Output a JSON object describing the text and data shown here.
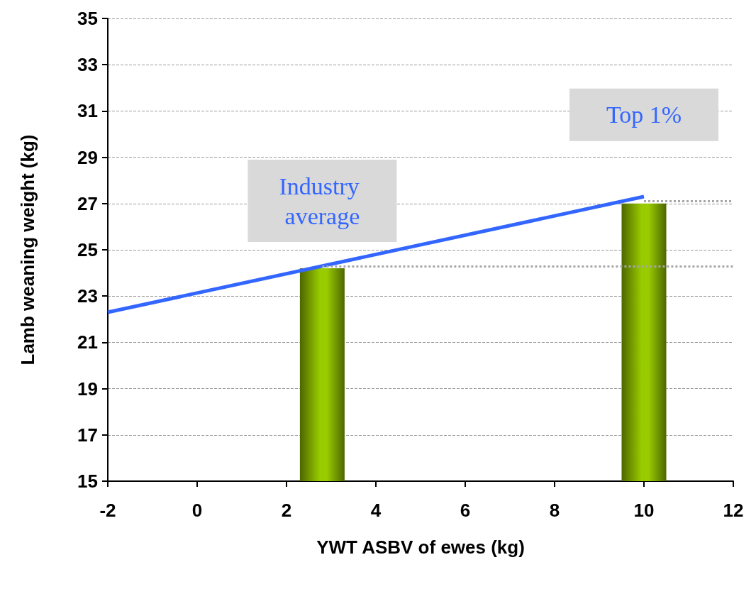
{
  "chart_data": {
    "type": "bar",
    "xlabel": "YWT ASBV of ewes (kg)",
    "ylabel": "Lamb weaning weight (kg)",
    "xlim": [
      -2,
      12
    ],
    "xticks": [
      -2,
      0,
      2,
      4,
      6,
      8,
      10,
      12
    ],
    "ylim": [
      15,
      35
    ],
    "yticks": [
      15,
      17,
      19,
      21,
      23,
      25,
      27,
      29,
      31,
      33,
      35
    ],
    "grid": "y",
    "marker": "none",
    "series": [
      {
        "x": [
          2.8,
          10
        ],
        "values": [
          24.2,
          27
        ],
        "color": "#99cc00"
      },
      {
        "type": "line",
        "x": [
          -2,
          10
        ],
        "values": [
          22.3,
          27.3
        ],
        "color": "#3366ff"
      }
    ],
    "ref_lines": [
      {
        "axis": "y",
        "value": 24.3,
        "color": "#a6a6a6",
        "line_style": "dotted"
      },
      {
        "axis": "y",
        "value": 27.1,
        "color": "#a6a6a6",
        "line_style": "dotted"
      }
    ],
    "annotations": [
      "Industry average",
      "Top 1%"
    ]
  }
}
